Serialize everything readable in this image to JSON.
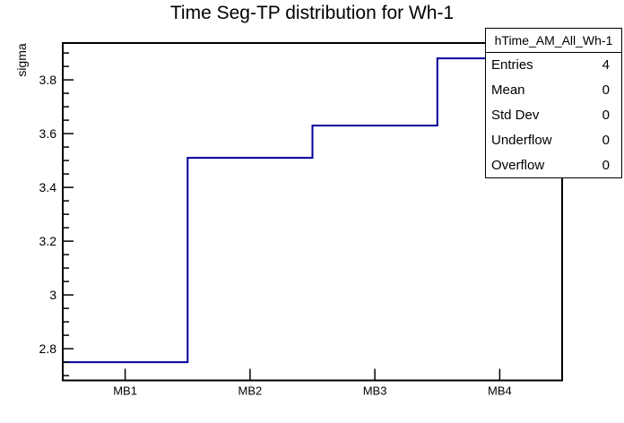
{
  "chart": {
    "title": "Time Seg-TP distribution for Wh-1",
    "y_axis_title": "sigma"
  },
  "stats": {
    "title": "hTime_AM_All_Wh-1",
    "rows": [
      {
        "label": "Entries",
        "value": "4"
      },
      {
        "label": "Mean",
        "value": "0"
      },
      {
        "label": "Std Dev",
        "value": "0"
      },
      {
        "label": "Underflow",
        "value": "0"
      },
      {
        "label": "Overflow",
        "value": "0"
      }
    ]
  },
  "chart_data": {
    "type": "line",
    "style": "step-histogram",
    "title": "Time Seg-TP distribution for Wh-1",
    "xlabel": "",
    "ylabel": "sigma",
    "categories": [
      "MB1",
      "MB2",
      "MB3",
      "MB4"
    ],
    "values": [
      2.75,
      3.51,
      3.63,
      3.88
    ],
    "ylim": [
      2.682,
      3.937
    ],
    "y_major_ticks": [
      2.8,
      3.0,
      3.2,
      3.4,
      3.6,
      3.8
    ],
    "y_major_tick_labels": [
      "2.8",
      "3",
      "3.2",
      "3.4",
      "3.6",
      "3.8"
    ],
    "y_minor_tick_step": 0.05,
    "grid": false,
    "legend_position": "none",
    "line_color": "#000099",
    "frame_color": "#000000",
    "background_color": "#ffffff"
  }
}
